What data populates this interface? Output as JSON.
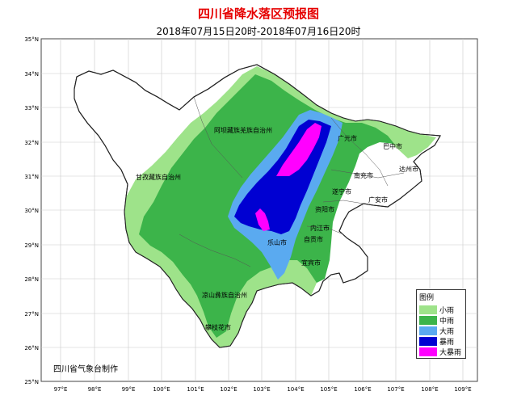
{
  "title": "四川省降水落区预报图",
  "subtitle": "2018年07月15日20时-2018年07月16日20时",
  "credit": "四川省气象台制作",
  "legend": {
    "title": "图例",
    "items": [
      {
        "label": "小雨",
        "color": "#9ee38a"
      },
      {
        "label": "中雨",
        "color": "#3cb44a"
      },
      {
        "label": "大雨",
        "color": "#5aaaf0"
      },
      {
        "label": "暴雨",
        "color": "#0000d2"
      },
      {
        "label": "大暴雨",
        "color": "#ff00ff"
      }
    ]
  },
  "lat_ticks": [
    "35°N",
    "34°N",
    "33°N",
    "32°N",
    "31°N",
    "30°N",
    "29°N",
    "28°N",
    "27°N",
    "26°N",
    "25°N"
  ],
  "lon_ticks": [
    "97°E",
    "98°E",
    "99°E",
    "100°E",
    "101°E",
    "102°E",
    "103°E",
    "104°E",
    "105°E",
    "106°E",
    "107°E",
    "108°E",
    "109°E"
  ],
  "cities": [
    {
      "name": "广元市"
    },
    {
      "name": "巴中市"
    },
    {
      "name": "达州市"
    },
    {
      "name": "南充市"
    },
    {
      "name": "遂宁市"
    },
    {
      "name": "广安市"
    },
    {
      "name": "资阳市"
    },
    {
      "name": "内江市"
    },
    {
      "name": "自贡市"
    },
    {
      "name": "乐山市"
    },
    {
      "name": "宜宾市"
    },
    {
      "name": "攀枝花市"
    }
  ],
  "regions": [
    {
      "name": "阿坝藏族羌族自治州"
    },
    {
      "name": "甘孜藏族自治州"
    },
    {
      "name": "凉山彝族自治州"
    }
  ]
}
